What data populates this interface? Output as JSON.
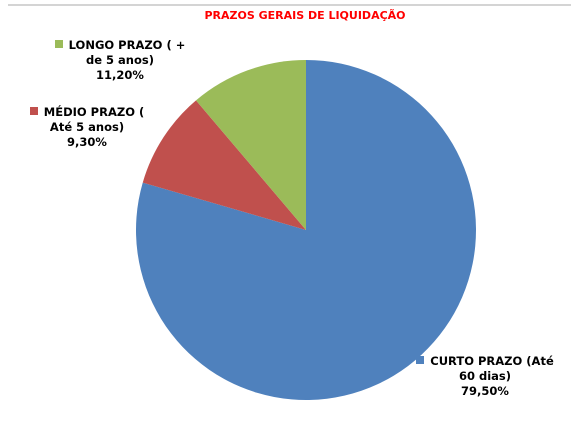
{
  "chart_data": {
    "type": "pie",
    "title": "PRAZOS GERAIS DE LIQUIDAÇÃO",
    "categories": [
      "CURTO PRAZO (Até 60 dias)",
      "MÉDIO PRAZO ( Até 5 anos)",
      "LONGO PRAZO ( + de 5 anos)"
    ],
    "values": [
      79.5,
      9.3,
      11.2
    ],
    "value_labels": [
      "79,50%",
      "9,30%",
      "11,20%"
    ],
    "colors": [
      "#4f81bd",
      "#c0504d",
      "#9bbb59"
    ]
  }
}
